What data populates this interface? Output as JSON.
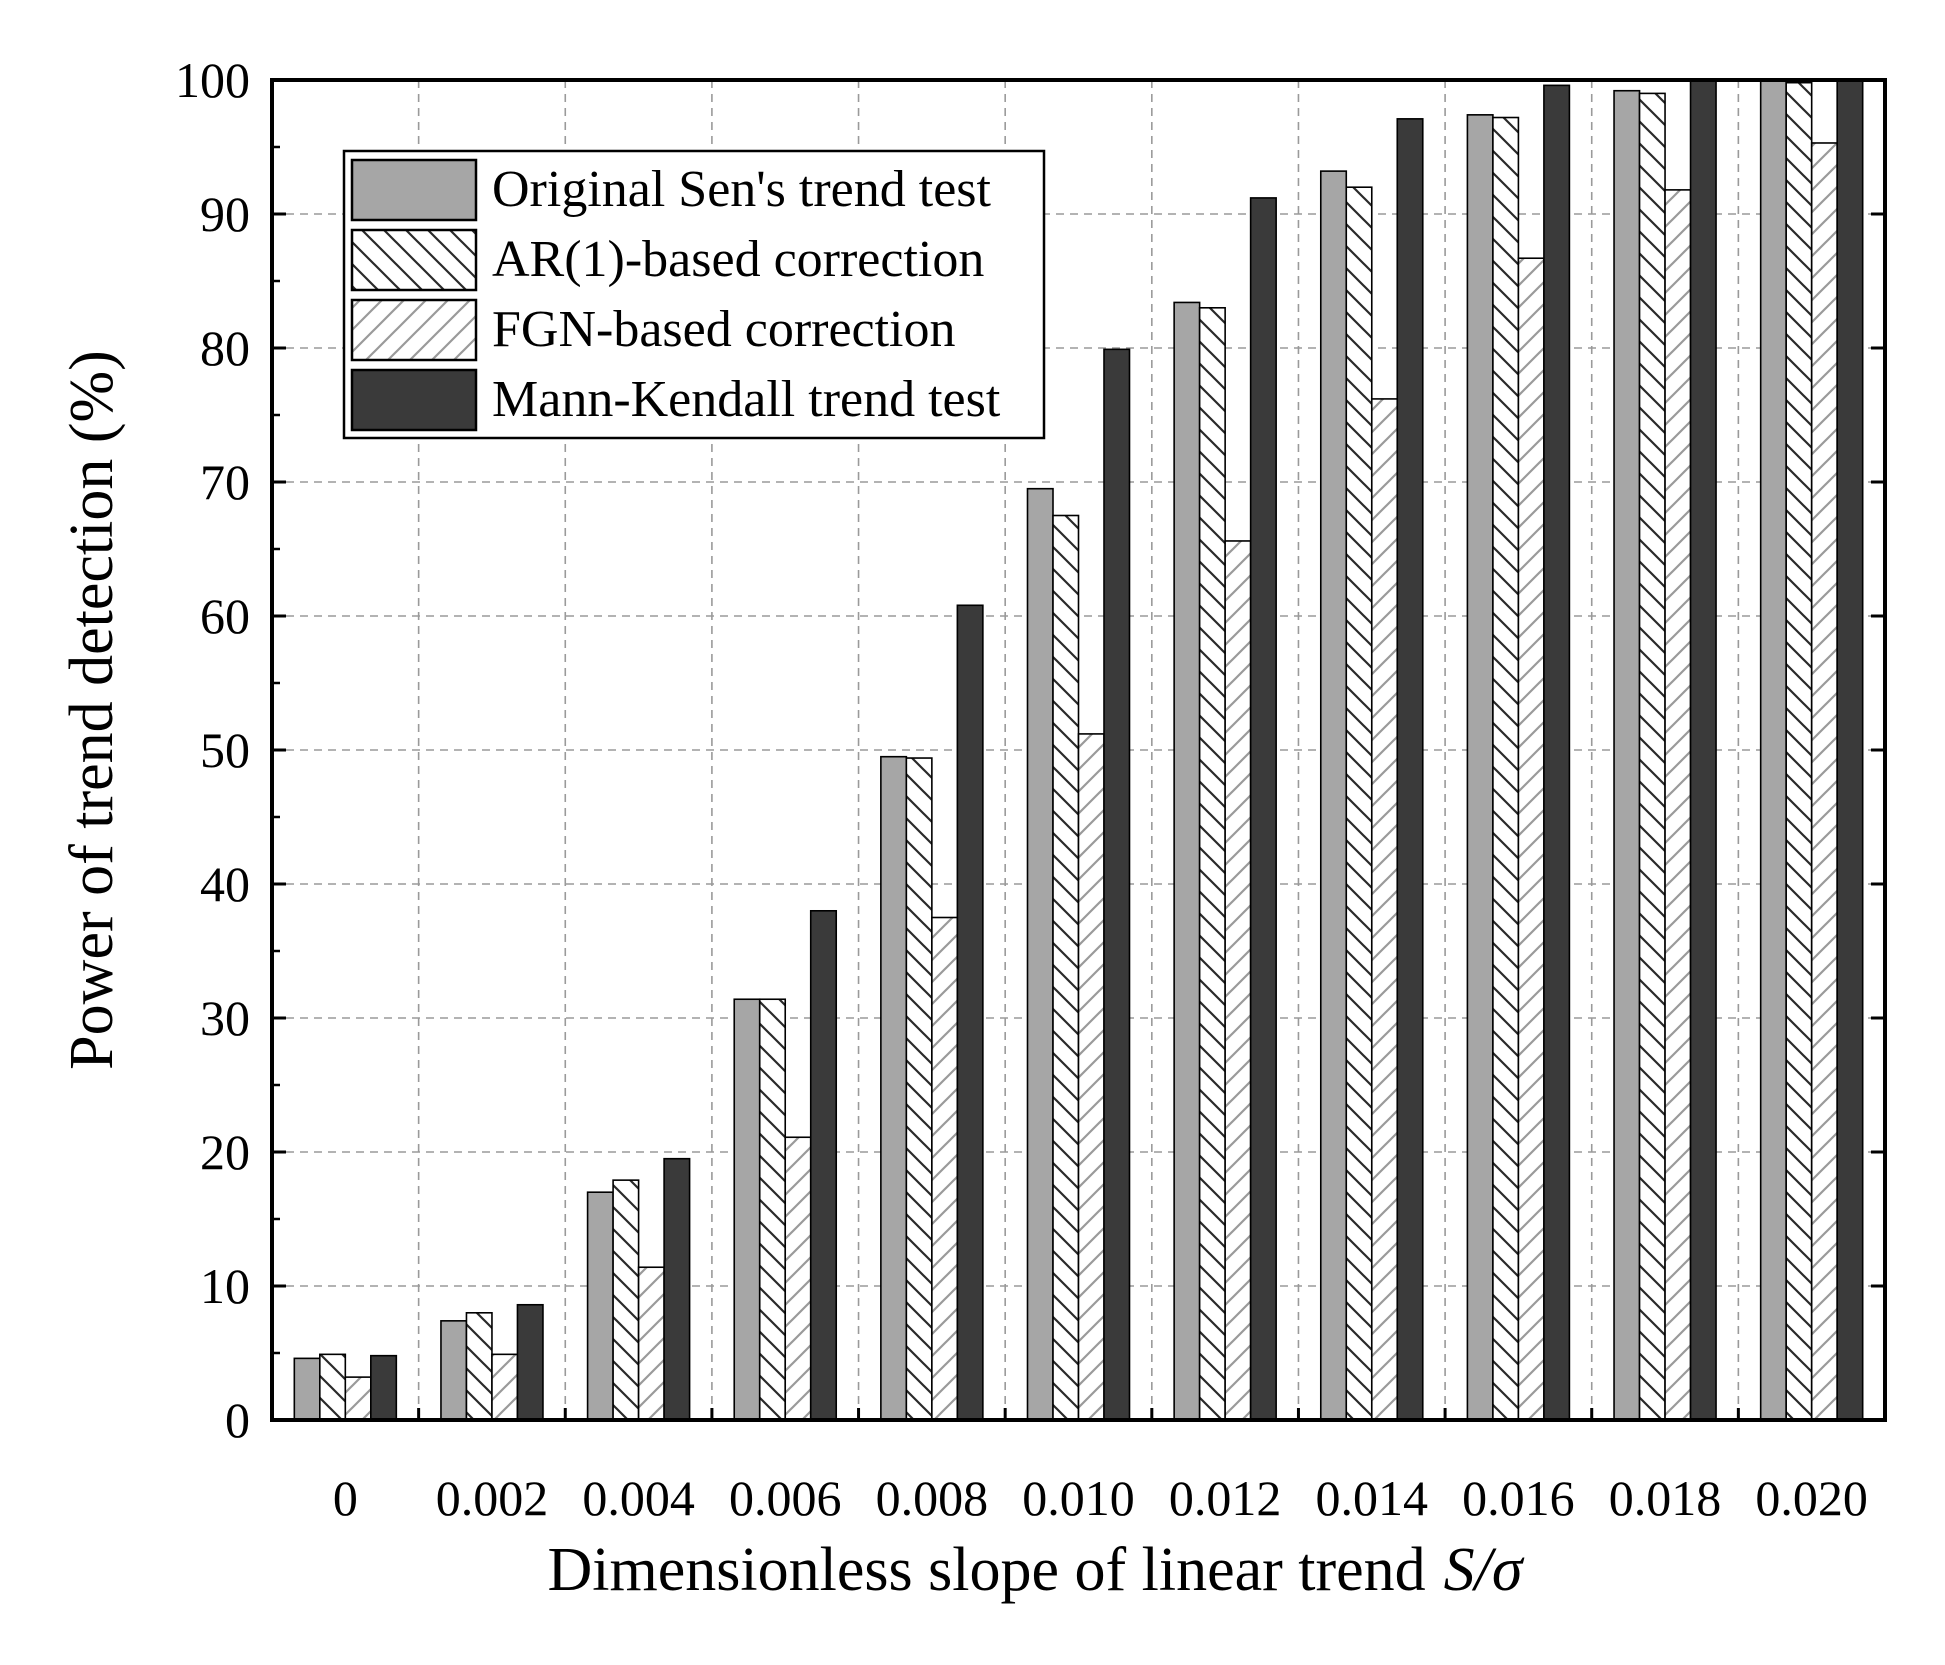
{
  "chart_data": {
    "type": "bar",
    "xlabel": "Dimensionless slope of linear trend",
    "xlabel_italic": "S/σ",
    "ylabel": "Power of trend detection (%)",
    "ylim": [
      0,
      100
    ],
    "yticks": [
      "0",
      "10",
      "20",
      "30",
      "40",
      "50",
      "60",
      "70",
      "80",
      "90",
      "100"
    ],
    "categories": [
      "0",
      "0.002",
      "0.004",
      "0.006",
      "0.008",
      "0.010",
      "0.012",
      "0.014",
      "0.016",
      "0.018",
      "0.020"
    ],
    "grid": true,
    "legend_position": "top-left",
    "series": [
      {
        "name": "Original Sen's trend test",
        "pattern": "solid-gray",
        "color": "#a6a6a6",
        "values": [
          4.6,
          7.4,
          17.0,
          31.4,
          49.5,
          69.5,
          83.4,
          93.2,
          97.4,
          99.2,
          100.0
        ]
      },
      {
        "name": "AR(1)-based correction",
        "pattern": "back-diagonal-hatch",
        "color": "#ffffff",
        "values": [
          4.9,
          8.0,
          17.9,
          31.4,
          49.4,
          67.5,
          83.0,
          92.0,
          97.2,
          99.0,
          99.8
        ]
      },
      {
        "name": "FGN-based correction",
        "pattern": "forward-diagonal-hatch",
        "color": "#ffffff",
        "values": [
          3.2,
          4.9,
          11.4,
          21.1,
          37.5,
          51.2,
          65.6,
          76.2,
          86.7,
          91.8,
          95.3
        ]
      },
      {
        "name": "Mann-Kendall trend test",
        "pattern": "solid-dark",
        "color": "#3a3a3a",
        "values": [
          4.8,
          8.6,
          19.5,
          38.0,
          60.8,
          79.9,
          91.2,
          97.1,
          99.6,
          100.0,
          100.0
        ]
      }
    ]
  }
}
